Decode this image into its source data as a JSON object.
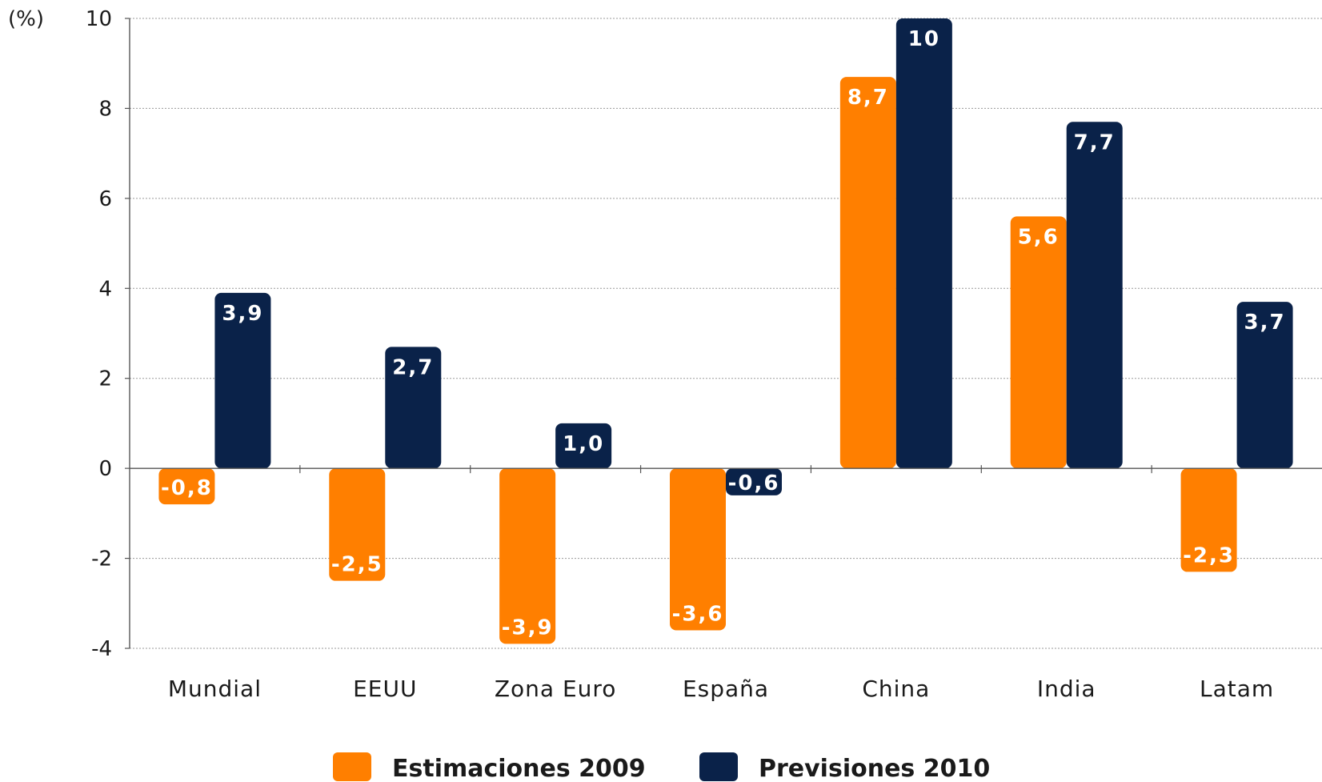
{
  "chart_data": {
    "type": "bar",
    "unit_label": "(%)",
    "categories": [
      "Mundial",
      "EEUU",
      "Zona Euro",
      "España",
      "China",
      "India",
      "Latam"
    ],
    "series": [
      {
        "name": "Estimaciones 2009",
        "color": "#ff7f00",
        "values": [
          -0.8,
          -2.5,
          -3.9,
          -3.6,
          8.7,
          5.6,
          -2.3
        ],
        "labels": [
          "-0,8",
          "-2,5",
          "-3,9",
          "-3,6",
          "8,7",
          "5,6",
          "-2,3"
        ]
      },
      {
        "name": "Previsiones 2010",
        "color": "#0a2249",
        "values": [
          3.9,
          2.7,
          1.0,
          -0.6,
          10,
          7.7,
          3.7
        ],
        "labels": [
          "3,9",
          "2,7",
          "1,0",
          "-0,6",
          "10",
          "7,7",
          "3,7"
        ]
      }
    ],
    "ylim": [
      -4,
      10
    ],
    "yticks": [
      -4,
      -2,
      0,
      2,
      4,
      6,
      8,
      10
    ],
    "ytick_labels": [
      "-4",
      "-2",
      "0",
      "2",
      "4",
      "6",
      "8",
      "10"
    ],
    "grid": true,
    "legend_position": "bottom"
  }
}
